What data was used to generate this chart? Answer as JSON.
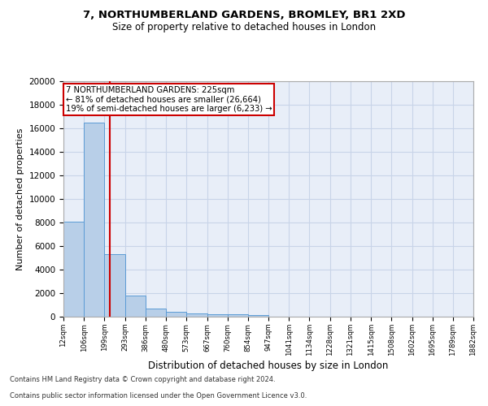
{
  "title_line1": "7, NORTHUMBERLAND GARDENS, BROMLEY, BR1 2XD",
  "title_line2": "Size of property relative to detached houses in London",
  "xlabel": "Distribution of detached houses by size in London",
  "ylabel": "Number of detached properties",
  "footer_line1": "Contains HM Land Registry data © Crown copyright and database right 2024.",
  "footer_line2": "Contains public sector information licensed under the Open Government Licence v3.0.",
  "bar_edges": [
    12,
    106,
    199,
    293,
    386,
    480,
    573,
    667,
    760,
    854,
    947,
    1041,
    1134,
    1228,
    1321,
    1415,
    1508,
    1602,
    1695,
    1789,
    1882
  ],
  "bar_heights": [
    8100,
    16500,
    5300,
    1800,
    700,
    380,
    290,
    210,
    175,
    140,
    0,
    0,
    0,
    0,
    0,
    0,
    0,
    0,
    0,
    0
  ],
  "bar_color": "#b8cfe8",
  "bar_edge_color": "#5b9bd5",
  "grid_color": "#c8d4e8",
  "property_size": 225,
  "property_line_color": "#cc0000",
  "annotation_text": "7 NORTHUMBERLAND GARDENS: 225sqm\n← 81% of detached houses are smaller (26,664)\n19% of semi-detached houses are larger (6,233) →",
  "annotation_box_color": "#ffffff",
  "annotation_border_color": "#cc0000",
  "ylim": [
    0,
    20000
  ],
  "yticks": [
    0,
    2000,
    4000,
    6000,
    8000,
    10000,
    12000,
    14000,
    16000,
    18000,
    20000
  ],
  "tick_labels": [
    "12sqm",
    "106sqm",
    "199sqm",
    "293sqm",
    "386sqm",
    "480sqm",
    "573sqm",
    "667sqm",
    "760sqm",
    "854sqm",
    "947sqm",
    "1041sqm",
    "1134sqm",
    "1228sqm",
    "1321sqm",
    "1415sqm",
    "1508sqm",
    "1602sqm",
    "1695sqm",
    "1789sqm",
    "1882sqm"
  ],
  "background_color": "#e8eef8"
}
